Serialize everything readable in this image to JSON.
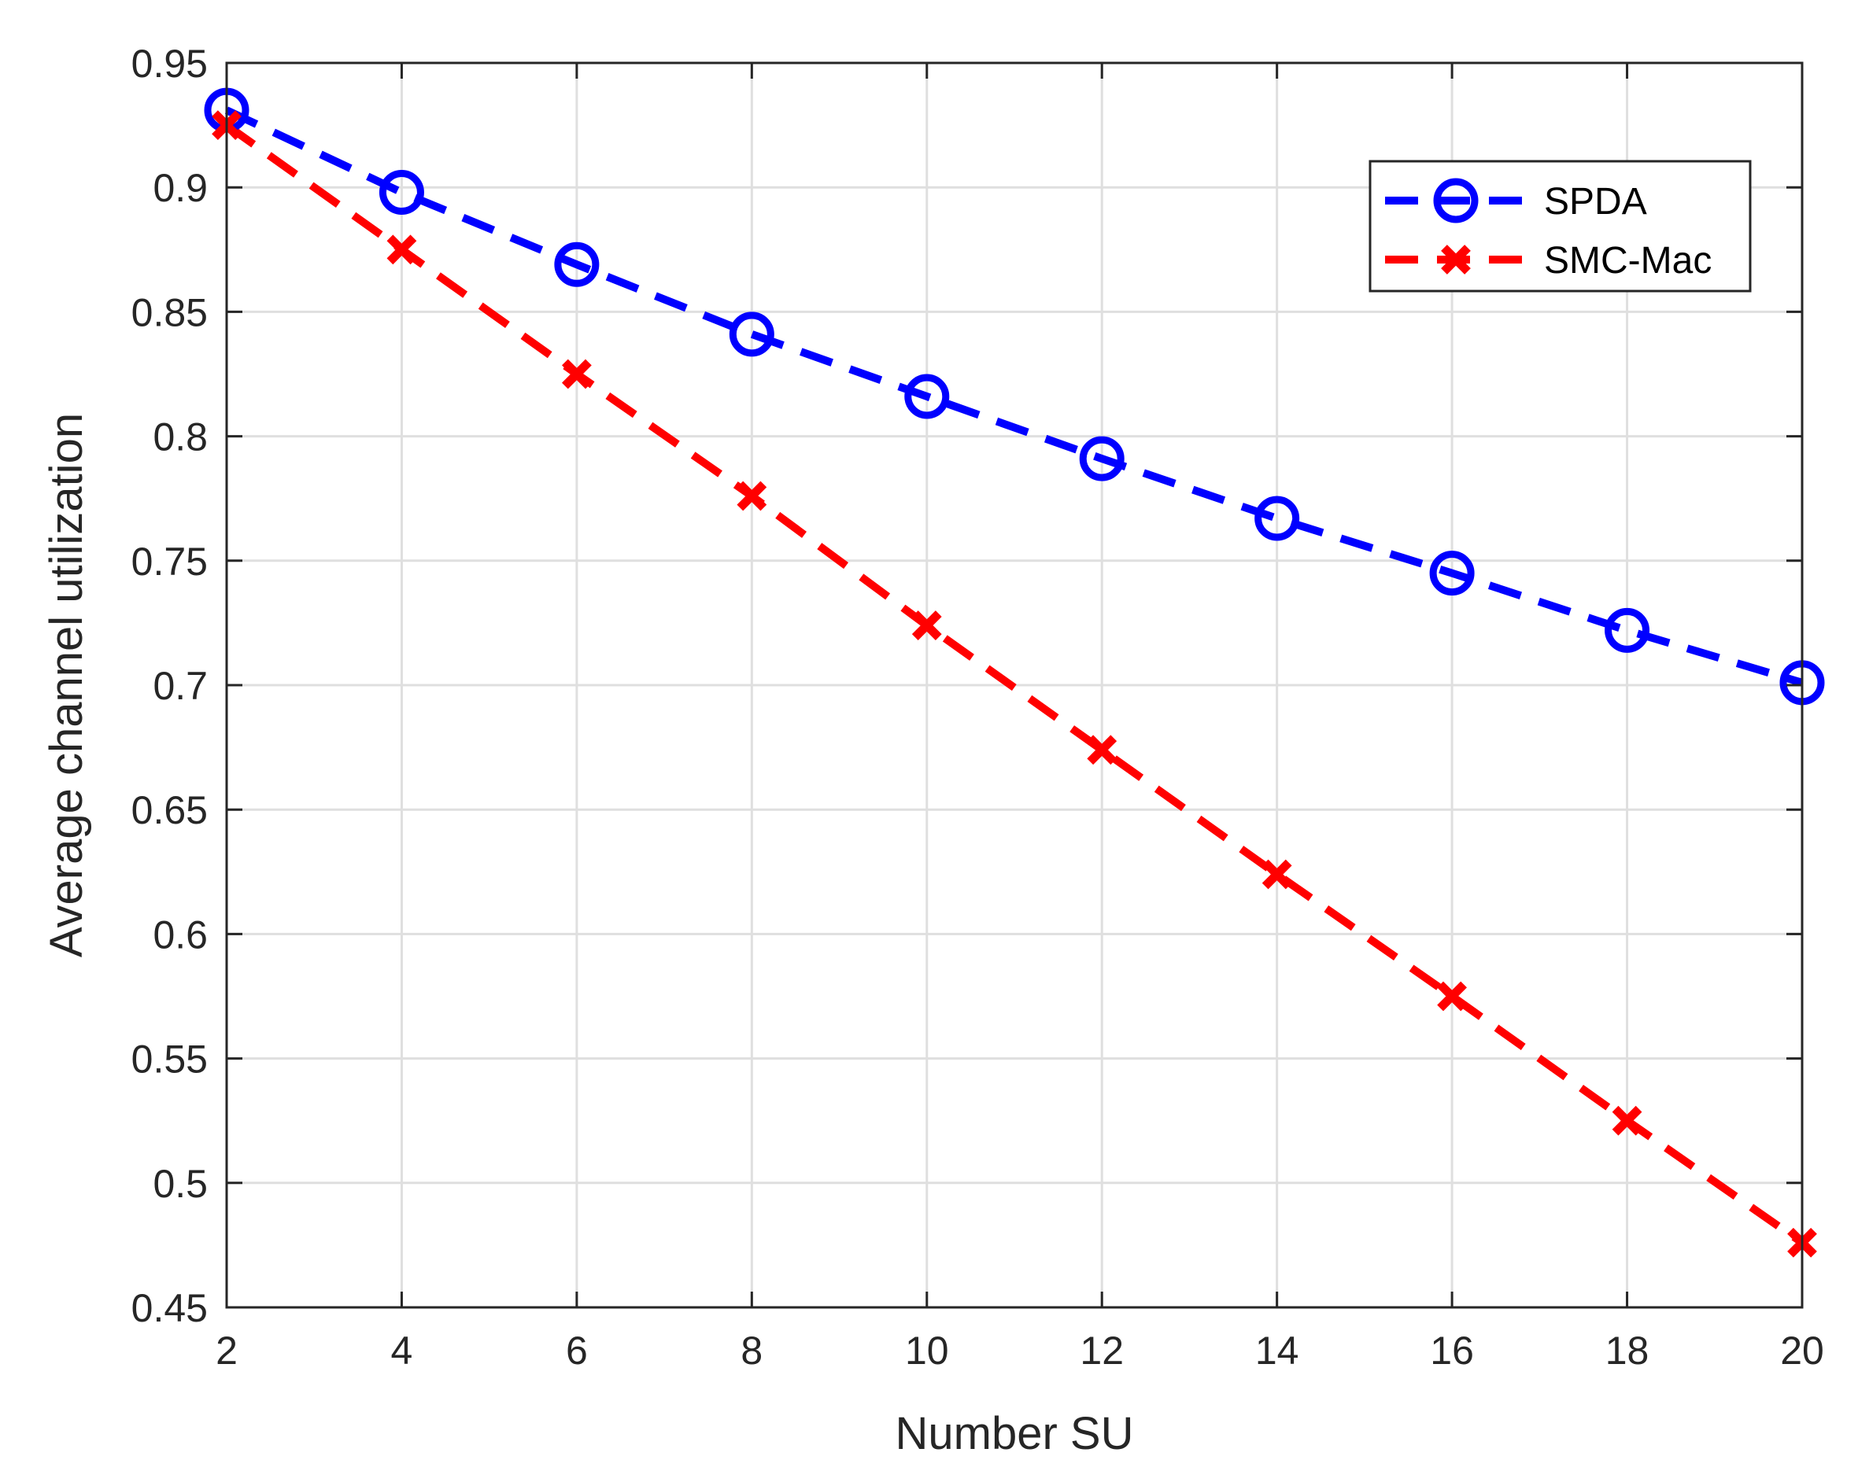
{
  "chart_data": {
    "type": "line",
    "title": "",
    "xlabel": "Number SU",
    "ylabel": "Average channel utilization",
    "x": [
      2,
      4,
      6,
      8,
      10,
      12,
      14,
      16,
      18,
      20
    ],
    "xlim": [
      2,
      20
    ],
    "ylim": [
      0.45,
      0.95
    ],
    "xticks": [
      "2",
      "4",
      "6",
      "8",
      "10",
      "12",
      "14",
      "16",
      "18",
      "20"
    ],
    "yticks": [
      "0.45",
      "0.5",
      "0.55",
      "0.6",
      "0.65",
      "0.7",
      "0.75",
      "0.8",
      "0.85",
      "0.9",
      "0.95"
    ],
    "grid": true,
    "legend_position": "top-right",
    "series": [
      {
        "name": "SPDA",
        "color": "#0000ff",
        "marker": "circle",
        "line_style": "dashed",
        "values": [
          0.931,
          0.898,
          0.869,
          0.841,
          0.816,
          0.791,
          0.767,
          0.745,
          0.722,
          0.701
        ]
      },
      {
        "name": "SMC-Mac",
        "color": "#ff0000",
        "marker": "x",
        "line_style": "dashed",
        "values": [
          0.925,
          0.875,
          0.825,
          0.776,
          0.724,
          0.674,
          0.624,
          0.575,
          0.525,
          0.476
        ]
      }
    ]
  }
}
